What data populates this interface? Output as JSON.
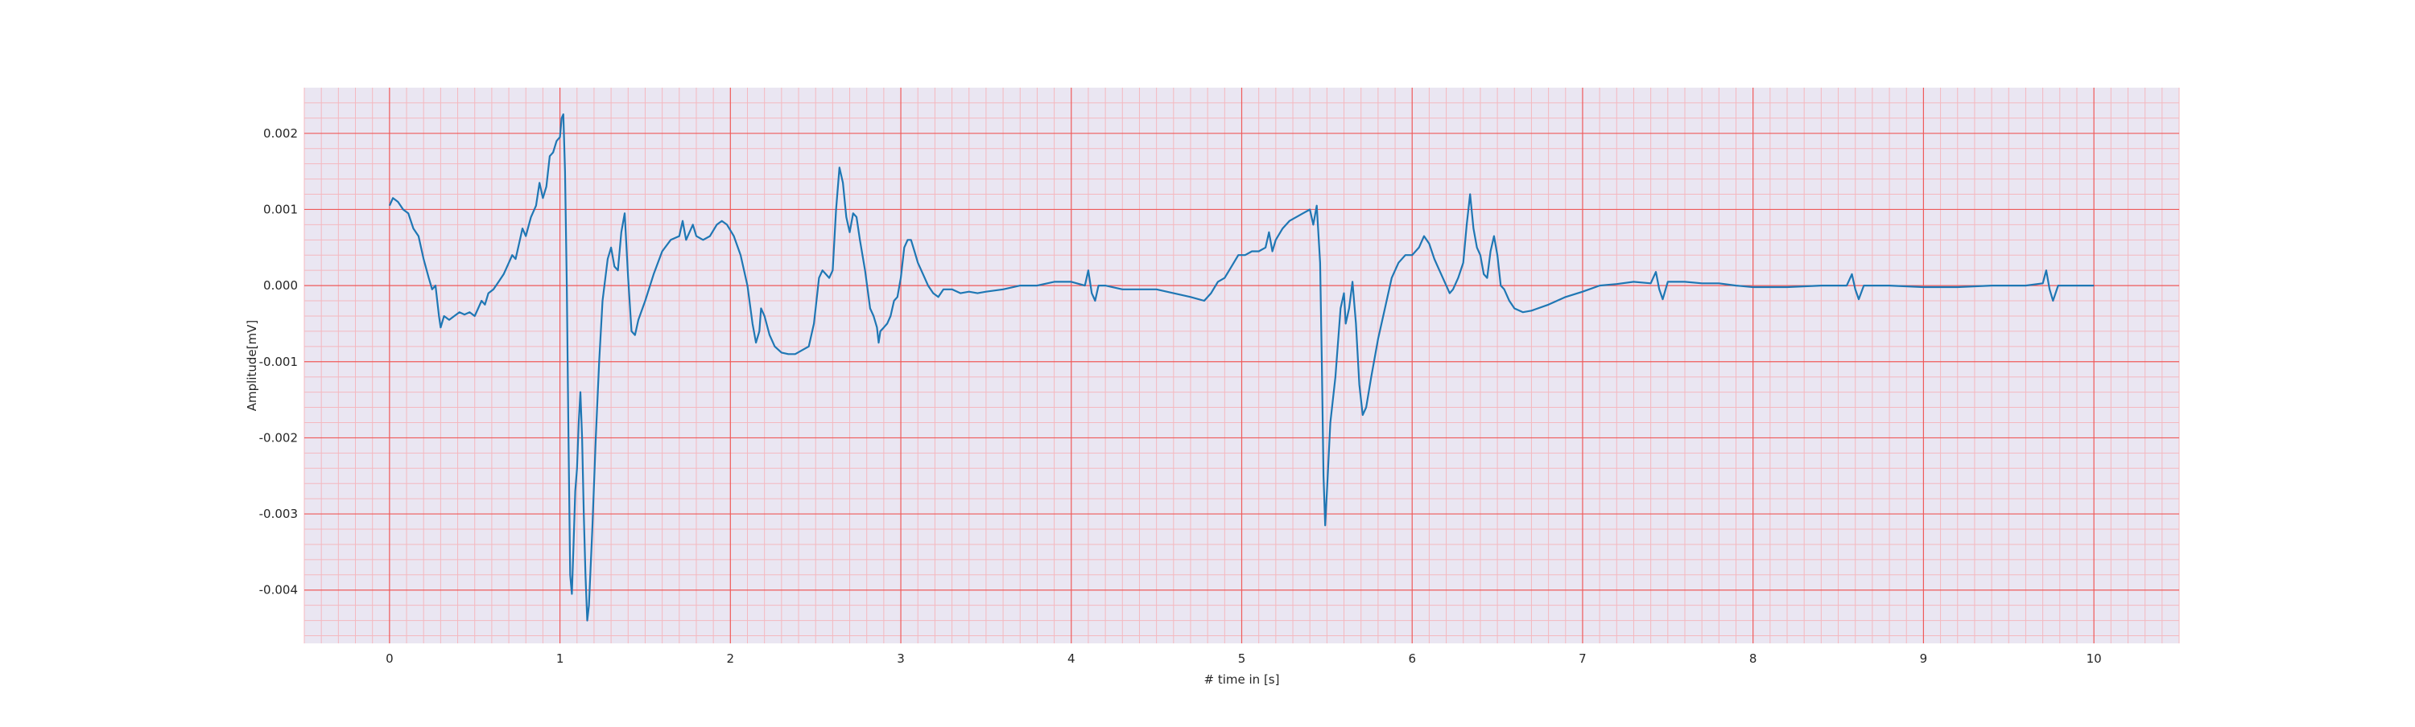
{
  "chart_data": {
    "type": "line",
    "title": "",
    "xlabel": "# time in [s]",
    "ylabel": "Amplitude[mV]",
    "xlim": [
      -0.5,
      10.5
    ],
    "ylim": [
      -0.0047,
      0.0026
    ],
    "x_ticks": [
      0,
      1,
      2,
      3,
      4,
      5,
      6,
      7,
      8,
      9,
      10
    ],
    "x_tick_labels": [
      "0",
      "1",
      "2",
      "3",
      "4",
      "5",
      "6",
      "7",
      "8",
      "9",
      "10"
    ],
    "y_ticks": [
      0.002,
      0.001,
      0.0,
      -0.001,
      -0.002,
      -0.003,
      -0.004
    ],
    "y_tick_labels": [
      "0.002",
      "0.001",
      "0.000",
      "-0.001",
      "-0.002",
      "-0.003",
      "-0.004"
    ],
    "grid": {
      "major": true,
      "minor": true,
      "major_color": "#ef5a5a",
      "minor_color": "#f4b8bf"
    },
    "background_color": "#eae6f2",
    "series": [
      {
        "color": "#1f77b4",
        "points": [
          [
            0.0,
            0.00105
          ],
          [
            0.02,
            0.00115
          ],
          [
            0.05,
            0.0011
          ],
          [
            0.08,
            0.001
          ],
          [
            0.11,
            0.00095
          ],
          [
            0.14,
            0.00075
          ],
          [
            0.17,
            0.00065
          ],
          [
            0.2,
            0.00035
          ],
          [
            0.23,
            0.0001
          ],
          [
            0.25,
            -5e-05
          ],
          [
            0.27,
            0.0
          ],
          [
            0.29,
            -0.0004
          ],
          [
            0.3,
            -0.00055
          ],
          [
            0.32,
            -0.0004
          ],
          [
            0.35,
            -0.00045
          ],
          [
            0.38,
            -0.0004
          ],
          [
            0.41,
            -0.00035
          ],
          [
            0.44,
            -0.00038
          ],
          [
            0.47,
            -0.00035
          ],
          [
            0.5,
            -0.0004
          ],
          [
            0.52,
            -0.0003
          ],
          [
            0.54,
            -0.0002
          ],
          [
            0.56,
            -0.00025
          ],
          [
            0.58,
            -0.0001
          ],
          [
            0.61,
            -5e-05
          ],
          [
            0.64,
            5e-05
          ],
          [
            0.67,
            0.00015
          ],
          [
            0.7,
            0.0003
          ],
          [
            0.72,
            0.0004
          ],
          [
            0.74,
            0.00035
          ],
          [
            0.76,
            0.00055
          ],
          [
            0.78,
            0.00075
          ],
          [
            0.8,
            0.00065
          ],
          [
            0.83,
            0.0009
          ],
          [
            0.86,
            0.00105
          ],
          [
            0.88,
            0.00135
          ],
          [
            0.9,
            0.00115
          ],
          [
            0.92,
            0.0013
          ],
          [
            0.94,
            0.0017
          ],
          [
            0.96,
            0.00175
          ],
          [
            0.98,
            0.0019
          ],
          [
            1.0,
            0.00195
          ],
          [
            1.01,
            0.0022
          ],
          [
            1.02,
            0.00225
          ],
          [
            1.03,
            0.0015
          ],
          [
            1.04,
            0.0
          ],
          [
            1.05,
            -0.002
          ],
          [
            1.06,
            -0.0038
          ],
          [
            1.07,
            -0.00405
          ],
          [
            1.08,
            -0.0034
          ],
          [
            1.09,
            -0.0027
          ],
          [
            1.1,
            -0.0024
          ],
          [
            1.11,
            -0.0018
          ],
          [
            1.12,
            -0.0014
          ],
          [
            1.13,
            -0.002
          ],
          [
            1.14,
            -0.003
          ],
          [
            1.15,
            -0.0038
          ],
          [
            1.16,
            -0.0044
          ],
          [
            1.17,
            -0.0042
          ],
          [
            1.19,
            -0.0032
          ],
          [
            1.21,
            -0.002
          ],
          [
            1.23,
            -0.001
          ],
          [
            1.25,
            -0.0002
          ],
          [
            1.28,
            0.00035
          ],
          [
            1.3,
            0.0005
          ],
          [
            1.32,
            0.00025
          ],
          [
            1.34,
            0.0002
          ],
          [
            1.36,
            0.0007
          ],
          [
            1.38,
            0.00095
          ],
          [
            1.4,
            0.0001
          ],
          [
            1.42,
            -0.0006
          ],
          [
            1.44,
            -0.00065
          ],
          [
            1.46,
            -0.00045
          ],
          [
            1.5,
            -0.0002
          ],
          [
            1.55,
            0.00015
          ],
          [
            1.6,
            0.00045
          ],
          [
            1.65,
            0.0006
          ],
          [
            1.7,
            0.00065
          ],
          [
            1.72,
            0.00085
          ],
          [
            1.74,
            0.0006
          ],
          [
            1.76,
            0.0007
          ],
          [
            1.78,
            0.0008
          ],
          [
            1.8,
            0.00065
          ],
          [
            1.84,
            0.0006
          ],
          [
            1.88,
            0.00065
          ],
          [
            1.92,
            0.0008
          ],
          [
            1.95,
            0.00085
          ],
          [
            1.98,
            0.0008
          ],
          [
            2.02,
            0.00065
          ],
          [
            2.06,
            0.0004
          ],
          [
            2.1,
            0.0
          ],
          [
            2.13,
            -0.0005
          ],
          [
            2.15,
            -0.00075
          ],
          [
            2.17,
            -0.0006
          ],
          [
            2.18,
            -0.0003
          ],
          [
            2.2,
            -0.0004
          ],
          [
            2.23,
            -0.00065
          ],
          [
            2.26,
            -0.0008
          ],
          [
            2.3,
            -0.00088
          ],
          [
            2.34,
            -0.0009
          ],
          [
            2.38,
            -0.0009
          ],
          [
            2.42,
            -0.00085
          ],
          [
            2.46,
            -0.0008
          ],
          [
            2.49,
            -0.0005
          ],
          [
            2.52,
            0.0001
          ],
          [
            2.54,
            0.0002
          ],
          [
            2.56,
            0.00015
          ],
          [
            2.58,
            0.0001
          ],
          [
            2.6,
            0.0002
          ],
          [
            2.62,
            0.001
          ],
          [
            2.64,
            0.00155
          ],
          [
            2.66,
            0.00135
          ],
          [
            2.68,
            0.0009
          ],
          [
            2.7,
            0.0007
          ],
          [
            2.72,
            0.00095
          ],
          [
            2.74,
            0.0009
          ],
          [
            2.76,
            0.0006
          ],
          [
            2.79,
            0.0002
          ],
          [
            2.82,
            -0.0003
          ],
          [
            2.84,
            -0.0004
          ],
          [
            2.86,
            -0.00055
          ],
          [
            2.87,
            -0.00075
          ],
          [
            2.88,
            -0.0006
          ],
          [
            2.9,
            -0.00055
          ],
          [
            2.92,
            -0.0005
          ],
          [
            2.94,
            -0.0004
          ],
          [
            2.96,
            -0.0002
          ],
          [
            2.98,
            -0.00015
          ],
          [
            3.0,
            0.0001
          ],
          [
            3.02,
            0.0005
          ],
          [
            3.04,
            0.0006
          ],
          [
            3.06,
            0.0006
          ],
          [
            3.08,
            0.00045
          ],
          [
            3.1,
            0.0003
          ],
          [
            3.13,
            0.00015
          ],
          [
            3.16,
            0.0
          ],
          [
            3.19,
            -0.0001
          ],
          [
            3.22,
            -0.00015
          ],
          [
            3.25,
            -5e-05
          ],
          [
            3.3,
            -5e-05
          ],
          [
            3.35,
            -0.0001
          ],
          [
            3.4,
            -8e-05
          ],
          [
            3.45,
            -0.0001
          ],
          [
            3.5,
            -8e-05
          ],
          [
            3.6,
            -5e-05
          ],
          [
            3.7,
            0.0
          ],
          [
            3.8,
            0.0
          ],
          [
            3.9,
            5e-05
          ],
          [
            4.0,
            5e-05
          ],
          [
            4.08,
            0.0
          ],
          [
            4.1,
            0.0002
          ],
          [
            4.12,
            -0.0001
          ],
          [
            4.14,
            -0.0002
          ],
          [
            4.16,
            0.0
          ],
          [
            4.2,
            0.0
          ],
          [
            4.3,
            -5e-05
          ],
          [
            4.4,
            -5e-05
          ],
          [
            4.5,
            -5e-05
          ],
          [
            4.6,
            -0.0001
          ],
          [
            4.7,
            -0.00015
          ],
          [
            4.78,
            -0.0002
          ],
          [
            4.82,
            -0.0001
          ],
          [
            4.86,
            5e-05
          ],
          [
            4.9,
            0.0001
          ],
          [
            4.94,
            0.00025
          ],
          [
            4.98,
            0.0004
          ],
          [
            5.02,
            0.0004
          ],
          [
            5.06,
            0.00045
          ],
          [
            5.1,
            0.00045
          ],
          [
            5.14,
            0.0005
          ],
          [
            5.16,
            0.0007
          ],
          [
            5.18,
            0.00045
          ],
          [
            5.2,
            0.0006
          ],
          [
            5.24,
            0.00075
          ],
          [
            5.28,
            0.00085
          ],
          [
            5.32,
            0.0009
          ],
          [
            5.36,
            0.00095
          ],
          [
            5.4,
            0.001
          ],
          [
            5.42,
            0.0008
          ],
          [
            5.44,
            0.00105
          ],
          [
            5.46,
            0.0003
          ],
          [
            5.47,
            -0.001
          ],
          [
            5.48,
            -0.0025
          ],
          [
            5.49,
            -0.00315
          ],
          [
            5.5,
            -0.0027
          ],
          [
            5.52,
            -0.0018
          ],
          [
            5.55,
            -0.0012
          ],
          [
            5.58,
            -0.0003
          ],
          [
            5.6,
            -0.0001
          ],
          [
            5.61,
            -0.0005
          ],
          [
            5.63,
            -0.0003
          ],
          [
            5.65,
            5e-05
          ],
          [
            5.67,
            -0.0005
          ],
          [
            5.69,
            -0.0013
          ],
          [
            5.71,
            -0.0017
          ],
          [
            5.73,
            -0.0016
          ],
          [
            5.76,
            -0.0012
          ],
          [
            5.8,
            -0.0007
          ],
          [
            5.84,
            -0.0003
          ],
          [
            5.88,
            0.0001
          ],
          [
            5.92,
            0.0003
          ],
          [
            5.96,
            0.0004
          ],
          [
            6.0,
            0.0004
          ],
          [
            6.04,
            0.0005
          ],
          [
            6.07,
            0.00065
          ],
          [
            6.1,
            0.00055
          ],
          [
            6.13,
            0.00035
          ],
          [
            6.16,
            0.0002
          ],
          [
            6.2,
            0.0
          ],
          [
            6.22,
            -0.0001
          ],
          [
            6.24,
            -5e-05
          ],
          [
            6.27,
            0.0001
          ],
          [
            6.3,
            0.0003
          ],
          [
            6.32,
            0.0008
          ],
          [
            6.34,
            0.0012
          ],
          [
            6.36,
            0.00075
          ],
          [
            6.38,
            0.0005
          ],
          [
            6.4,
            0.0004
          ],
          [
            6.42,
            0.00015
          ],
          [
            6.44,
            0.0001
          ],
          [
            6.46,
            0.00045
          ],
          [
            6.48,
            0.00065
          ],
          [
            6.5,
            0.0004
          ],
          [
            6.52,
            0.0
          ],
          [
            6.54,
            -5e-05
          ],
          [
            6.57,
            -0.0002
          ],
          [
            6.6,
            -0.0003
          ],
          [
            6.65,
            -0.00035
          ],
          [
            6.7,
            -0.00033
          ],
          [
            6.8,
            -0.00025
          ],
          [
            6.9,
            -0.00015
          ],
          [
            7.0,
            -8e-05
          ],
          [
            7.1,
            0.0
          ],
          [
            7.2,
            2e-05
          ],
          [
            7.3,
            5e-05
          ],
          [
            7.4,
            3e-05
          ],
          [
            7.43,
            0.00018
          ],
          [
            7.45,
            -5e-05
          ],
          [
            7.47,
            -0.00018
          ],
          [
            7.5,
            5e-05
          ],
          [
            7.6,
            5e-05
          ],
          [
            7.7,
            3e-05
          ],
          [
            7.8,
            3e-05
          ],
          [
            7.9,
            0.0
          ],
          [
            8.0,
            -2e-05
          ],
          [
            8.2,
            -2e-05
          ],
          [
            8.4,
            0.0
          ],
          [
            8.55,
            0.0
          ],
          [
            8.58,
            0.00015
          ],
          [
            8.6,
            -5e-05
          ],
          [
            8.62,
            -0.00018
          ],
          [
            8.65,
            0.0
          ],
          [
            8.8,
            0.0
          ],
          [
            9.0,
            -2e-05
          ],
          [
            9.2,
            -2e-05
          ],
          [
            9.4,
            0.0
          ],
          [
            9.6,
            0.0
          ],
          [
            9.7,
            3e-05
          ],
          [
            9.72,
            0.0002
          ],
          [
            9.74,
            -5e-05
          ],
          [
            9.76,
            -0.0002
          ],
          [
            9.79,
            0.0
          ],
          [
            9.9,
            0.0
          ],
          [
            10.0,
            0.0
          ]
        ]
      }
    ]
  }
}
